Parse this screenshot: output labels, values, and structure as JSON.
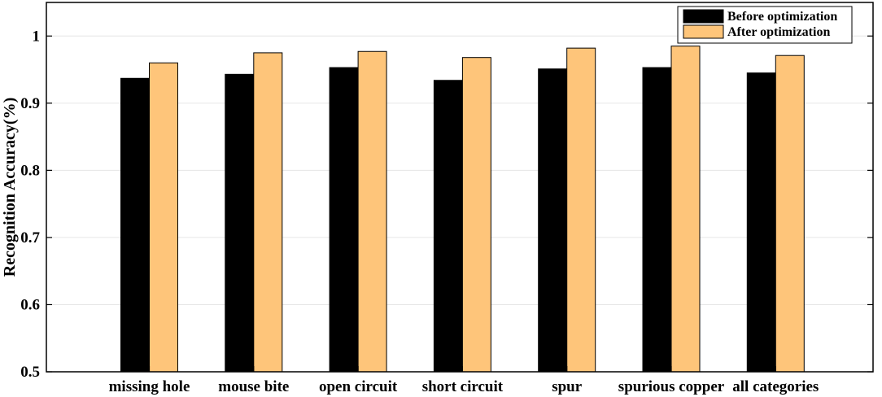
{
  "chart_data": {
    "type": "bar",
    "title": "",
    "xlabel": "",
    "ylabel": "Recognition Accuracy(%)",
    "ylim": [
      0.5,
      1.05
    ],
    "yticks": [
      0.5,
      0.6,
      0.7,
      0.8,
      0.9,
      1
    ],
    "ytick_labels": [
      "0.5",
      "0.6",
      "0.7",
      "0.8",
      "0.9",
      "1"
    ],
    "grid": "horizontal",
    "legend_position": "top-right",
    "categories": [
      "missing hole",
      "mouse bite",
      "open circuit",
      "short circuit",
      "spur",
      "spurious copper",
      "all categories"
    ],
    "series": [
      {
        "name": "Before optimization",
        "color": "#000000",
        "values": [
          0.937,
          0.943,
          0.953,
          0.934,
          0.951,
          0.953,
          0.945
        ]
      },
      {
        "name": "After optimization",
        "color": "#FEC57A",
        "values": [
          0.96,
          0.975,
          0.977,
          0.968,
          0.982,
          0.985,
          0.971
        ]
      }
    ]
  }
}
